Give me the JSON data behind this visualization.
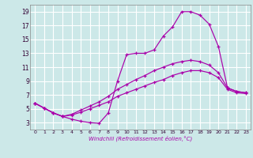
{
  "xlabel": "Windchill (Refroidissement éolien,°C)",
  "ylabel": "",
  "bg_color": "#cce8e8",
  "grid_color": "#ffffff",
  "line_color": "#aa00aa",
  "xlim": [
    -0.5,
    23.5
  ],
  "ylim": [
    2.0,
    20.0
  ],
  "xticks": [
    0,
    1,
    2,
    3,
    4,
    5,
    6,
    7,
    8,
    9,
    10,
    11,
    12,
    13,
    14,
    15,
    16,
    17,
    18,
    19,
    20,
    21,
    22,
    23
  ],
  "yticks": [
    3,
    5,
    7,
    9,
    11,
    13,
    15,
    17,
    19
  ],
  "line1_x": [
    0,
    1,
    2,
    3,
    4,
    5,
    6,
    7,
    8,
    9,
    10,
    11,
    12,
    13,
    14,
    15,
    16,
    17,
    18,
    19,
    20,
    21,
    22,
    23
  ],
  "line1_y": [
    5.8,
    5.1,
    4.4,
    3.9,
    3.5,
    3.2,
    3.0,
    2.9,
    4.4,
    9.0,
    12.8,
    13.0,
    13.0,
    13.5,
    15.5,
    16.8,
    19.0,
    19.0,
    18.5,
    17.2,
    14.0,
    8.0,
    7.5,
    7.3
  ],
  "line2_x": [
    0,
    1,
    2,
    3,
    4,
    5,
    6,
    7,
    8,
    9,
    10,
    11,
    12,
    13,
    14,
    15,
    16,
    17,
    18,
    19,
    20,
    21,
    22,
    23
  ],
  "line2_y": [
    5.8,
    5.1,
    4.4,
    3.9,
    4.2,
    4.8,
    5.4,
    6.0,
    6.8,
    7.8,
    8.5,
    9.2,
    9.8,
    10.5,
    11.0,
    11.5,
    11.8,
    12.0,
    11.8,
    11.3,
    10.2,
    8.0,
    7.5,
    7.3
  ],
  "line3_x": [
    0,
    1,
    2,
    3,
    4,
    5,
    6,
    7,
    8,
    9,
    10,
    11,
    12,
    13,
    14,
    15,
    16,
    17,
    18,
    19,
    20,
    21,
    22,
    23
  ],
  "line3_y": [
    5.8,
    5.1,
    4.4,
    3.9,
    4.1,
    4.5,
    5.0,
    5.5,
    6.0,
    6.8,
    7.3,
    7.8,
    8.3,
    8.8,
    9.2,
    9.8,
    10.2,
    10.5,
    10.5,
    10.2,
    9.5,
    7.8,
    7.3,
    7.2
  ]
}
